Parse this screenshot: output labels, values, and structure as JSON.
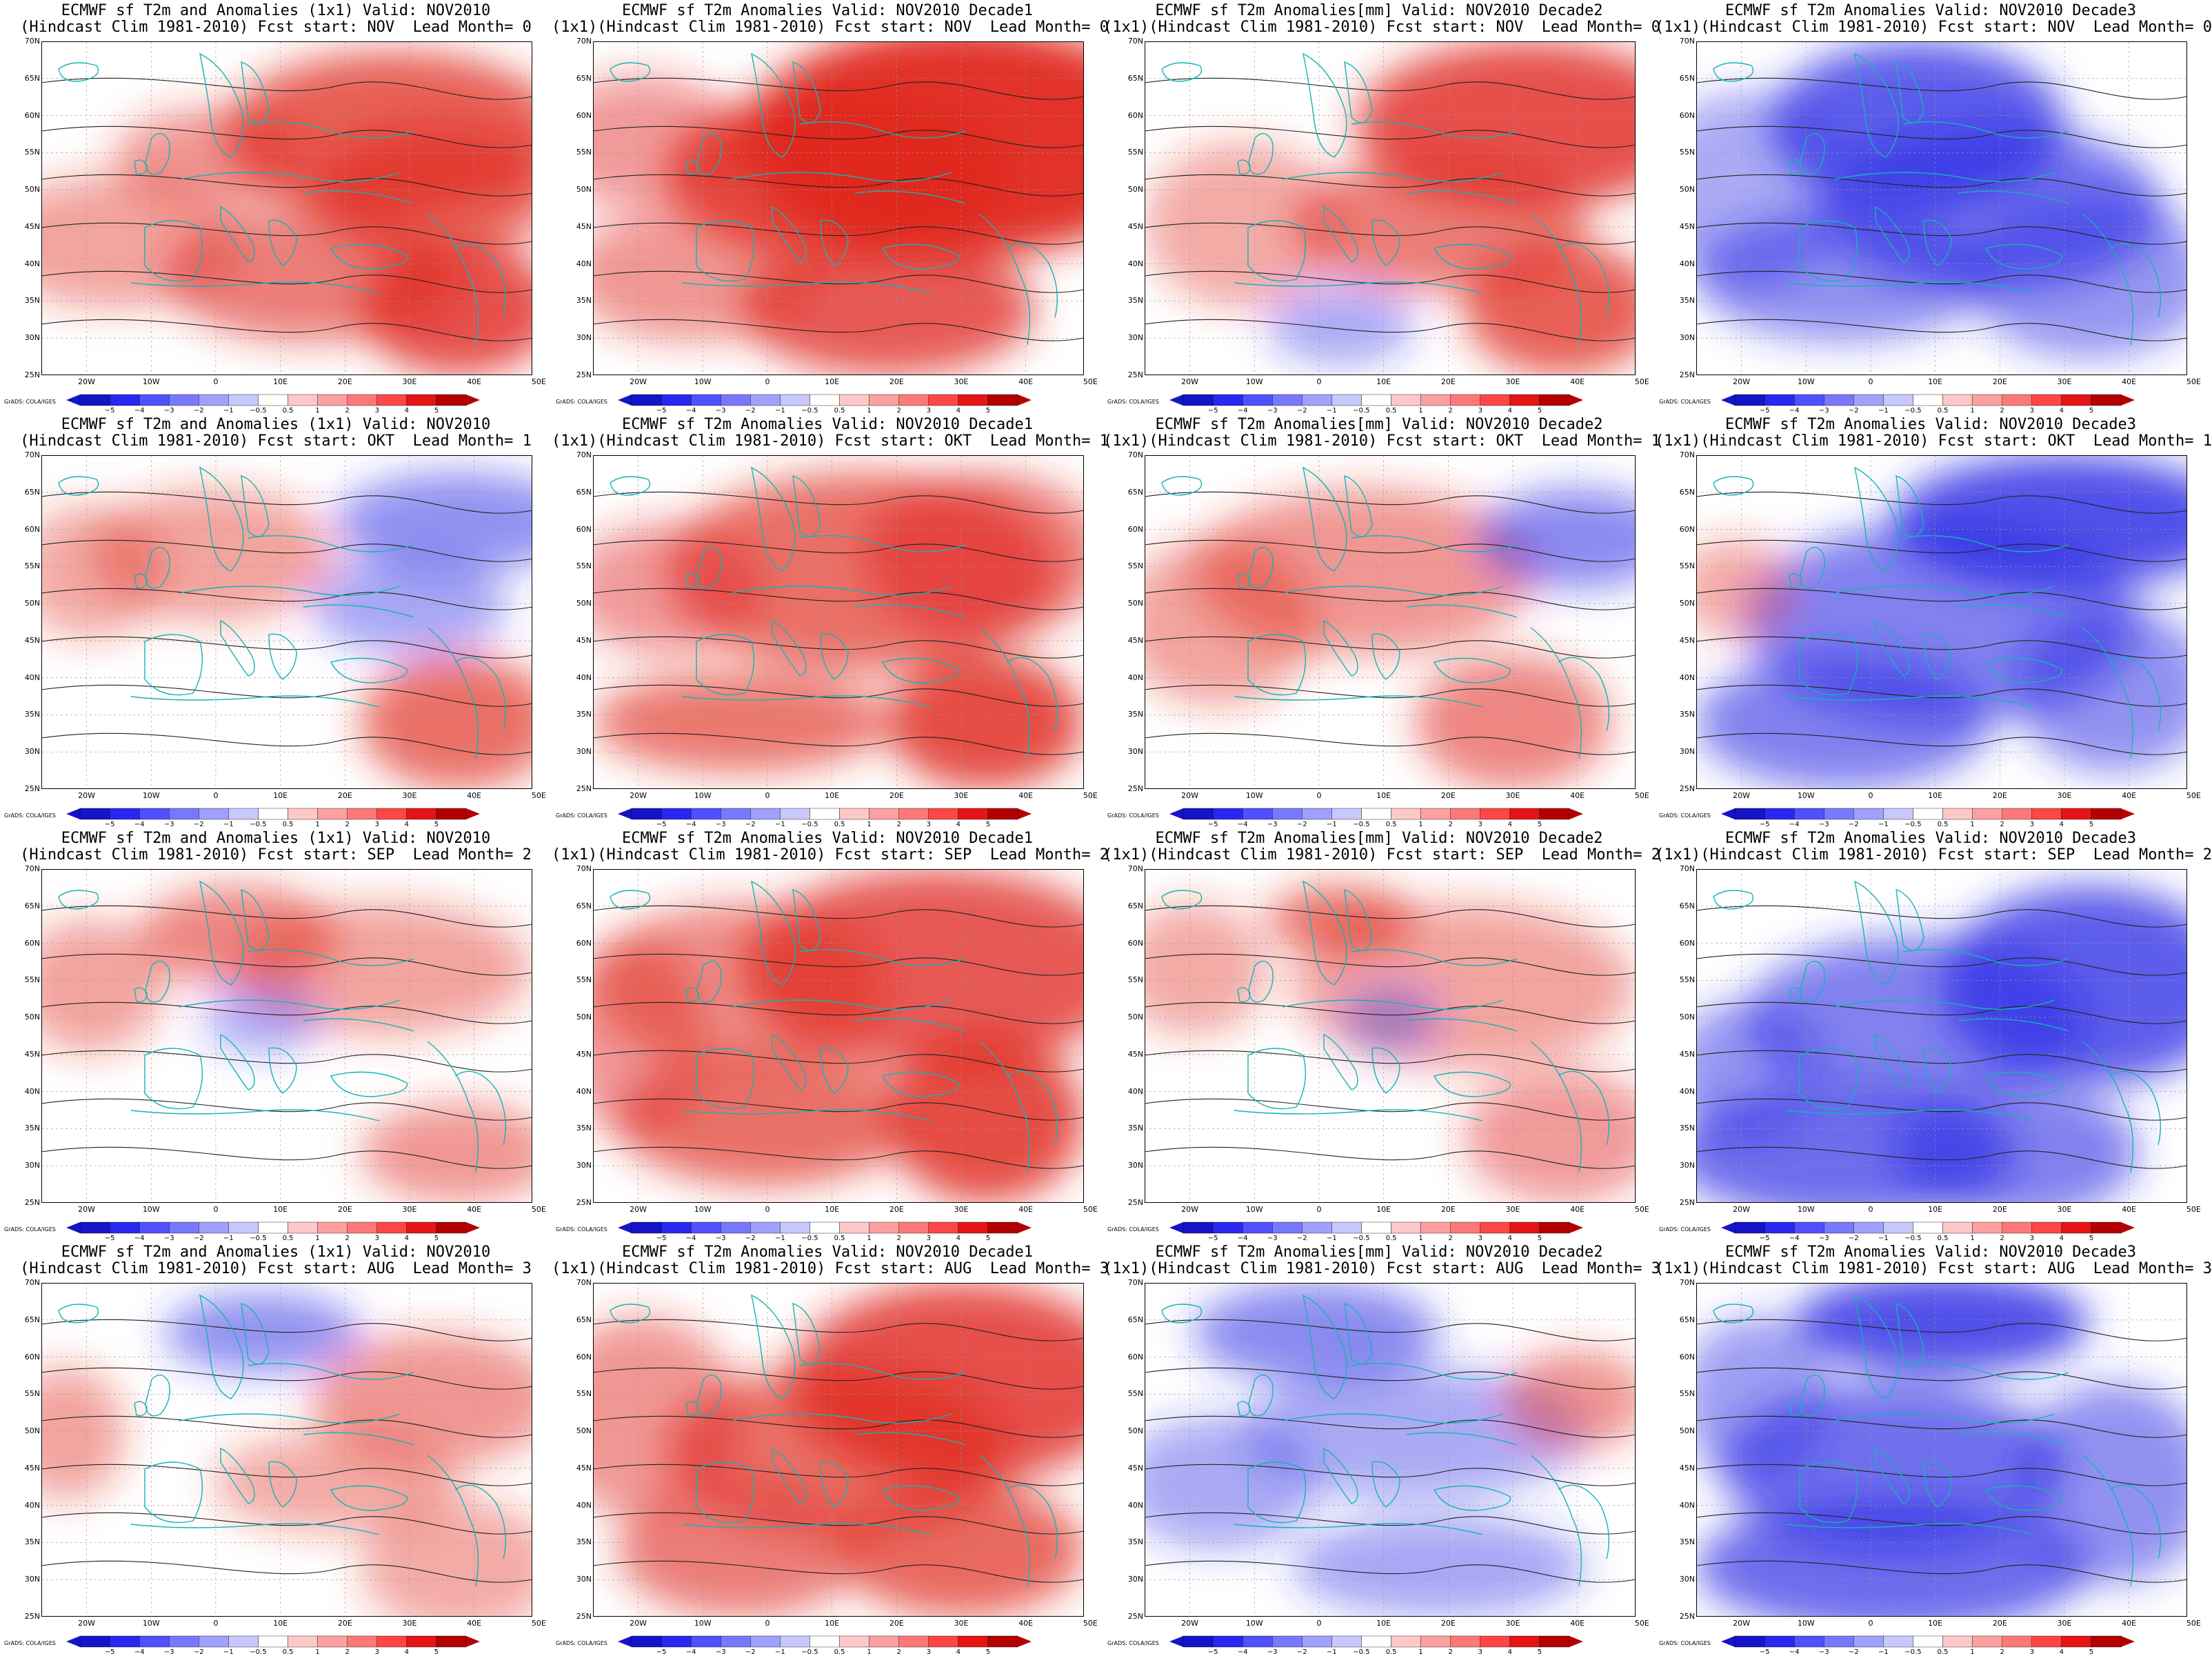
{
  "panels": [
    {
      "title1": "ECMWF sf T2m and Anomalies (1x1) Valid: NOV2010",
      "title2": "(Hindcast Clim 1981-2010) Fcst start: NOV  Lead Month= 0",
      "tone": "warm",
      "blobs": [
        [
          0.72,
          0.28,
          0.35,
          0.25,
          0.7
        ],
        [
          0.8,
          0.45,
          0.25,
          0.2,
          0.6
        ],
        [
          0.55,
          0.7,
          0.3,
          0.2,
          0.5
        ],
        [
          0.85,
          0.8,
          0.2,
          0.2,
          0.8
        ],
        [
          0.15,
          0.6,
          0.25,
          0.2,
          0.25
        ],
        [
          0.35,
          0.35,
          0.2,
          0.15,
          0.35
        ]
      ]
    },
    {
      "title1": "ECMWF sf T2m Anomalies Valid: NOV2010 Decade1",
      "title2": "(1x1)(Hindcast Clim 1981-2010) Fcst start: NOV  Lead Month= 0",
      "tone": "warm",
      "blobs": [
        [
          0.75,
          0.3,
          0.45,
          0.35,
          1.0
        ],
        [
          0.5,
          0.4,
          0.35,
          0.25,
          0.85
        ],
        [
          0.6,
          0.8,
          0.3,
          0.2,
          0.75
        ],
        [
          0.2,
          0.7,
          0.25,
          0.2,
          0.35
        ],
        [
          0.1,
          0.3,
          0.2,
          0.2,
          0.3
        ]
      ]
    },
    {
      "title1": "ECMWF sf T2m Anomalies[mm] Valid: NOV2010 Decade2",
      "title2": "(1x1)(Hindcast Clim 1981-2010) Fcst start: NOV  Lead Month= 0",
      "tone": "warm",
      "blobs": [
        [
          0.78,
          0.25,
          0.35,
          0.25,
          0.8
        ],
        [
          0.6,
          0.55,
          0.3,
          0.2,
          0.5
        ],
        [
          0.85,
          0.8,
          0.2,
          0.2,
          0.7
        ],
        [
          0.2,
          0.55,
          0.2,
          0.25,
          0.2
        ],
        [
          0.4,
          0.85,
          0.15,
          0.12,
          -0.2
        ]
      ]
    },
    {
      "title1": "ECMWF sf T2m Anomalies Valid: NOV2010 Decade3",
      "title2": "(1x1)(Hindcast Clim 1981-2010) Fcst start: NOV  Lead Month= 0",
      "tone": "cold",
      "blobs": [
        [
          0.45,
          0.25,
          0.3,
          0.25,
          -0.75
        ],
        [
          0.6,
          0.5,
          0.35,
          0.25,
          -0.55
        ],
        [
          0.3,
          0.7,
          0.3,
          0.2,
          -0.4
        ],
        [
          0.8,
          0.7,
          0.25,
          0.25,
          -0.35
        ],
        [
          0.1,
          0.45,
          0.2,
          0.3,
          -0.2
        ]
      ]
    },
    {
      "title1": "ECMWF sf T2m and Anomalies (1x1) Valid: NOV2010",
      "title2": "(Hindcast Clim 1981-2010) Fcst start: OKT  Lead Month= 1",
      "tone": "mixed",
      "blobs": [
        [
          0.85,
          0.2,
          0.25,
          0.15,
          -0.4
        ],
        [
          0.35,
          0.3,
          0.25,
          0.2,
          0.25
        ],
        [
          0.75,
          0.45,
          0.2,
          0.15,
          -0.25
        ],
        [
          0.85,
          0.8,
          0.2,
          0.2,
          0.6
        ],
        [
          0.1,
          0.35,
          0.15,
          0.2,
          0.2
        ]
      ]
    },
    {
      "title1": "ECMWF sf T2m Anomalies Valid: NOV2010 Decade1",
      "title2": "(1x1)(Hindcast Clim 1981-2010) Fcst start: OKT  Lead Month= 1",
      "tone": "warm",
      "blobs": [
        [
          0.55,
          0.35,
          0.4,
          0.3,
          0.6
        ],
        [
          0.8,
          0.8,
          0.2,
          0.2,
          0.85
        ],
        [
          0.3,
          0.8,
          0.3,
          0.15,
          0.55
        ],
        [
          0.8,
          0.3,
          0.25,
          0.25,
          0.45
        ],
        [
          0.15,
          0.4,
          0.2,
          0.2,
          0.3
        ]
      ]
    },
    {
      "title1": "ECMWF sf T2m Anomalies[mm] Valid: NOV2010 Decade2",
      "title2": "(1x1)(Hindcast Clim 1981-2010) Fcst start: OKT  Lead Month= 1",
      "tone": "mixed",
      "blobs": [
        [
          0.45,
          0.35,
          0.35,
          0.25,
          0.35
        ],
        [
          0.88,
          0.25,
          0.2,
          0.15,
          -0.45
        ],
        [
          0.75,
          0.8,
          0.2,
          0.2,
          0.45
        ],
        [
          0.15,
          0.5,
          0.2,
          0.25,
          0.25
        ]
      ]
    },
    {
      "title1": "ECMWF sf T2m Anomalies Valid: NOV2010 Decade3",
      "title2": "(1x1)(Hindcast Clim 1981-2010) Fcst start: OKT  Lead Month= 1",
      "tone": "cold",
      "blobs": [
        [
          0.75,
          0.2,
          0.35,
          0.2,
          -0.85
        ],
        [
          0.5,
          0.5,
          0.4,
          0.3,
          -0.5
        ],
        [
          0.3,
          0.8,
          0.3,
          0.2,
          -0.5
        ],
        [
          0.85,
          0.7,
          0.2,
          0.25,
          -0.4
        ],
        [
          0.08,
          0.4,
          0.12,
          0.15,
          0.2
        ]
      ]
    },
    {
      "title1": "ECMWF sf T2m and Anomalies (1x1) Valid: NOV2010",
      "title2": "(Hindcast Clim 1981-2010) Fcst start: SEP  Lead Month= 2",
      "tone": "mixed",
      "blobs": [
        [
          0.4,
          0.2,
          0.2,
          0.15,
          0.45
        ],
        [
          0.7,
          0.3,
          0.3,
          0.2,
          0.25
        ],
        [
          0.85,
          0.85,
          0.2,
          0.15,
          0.35
        ],
        [
          0.45,
          0.45,
          0.12,
          0.1,
          -0.2
        ],
        [
          0.1,
          0.35,
          0.15,
          0.2,
          0.25
        ]
      ]
    },
    {
      "title1": "ECMWF sf T2m Anomalies Valid: NOV2010 Decade1",
      "title2": "(1x1)(Hindcast Clim 1981-2010) Fcst start: SEP  Lead Month= 2",
      "tone": "warm",
      "blobs": [
        [
          0.7,
          0.3,
          0.4,
          0.3,
          0.75
        ],
        [
          0.8,
          0.75,
          0.2,
          0.25,
          0.85
        ],
        [
          0.35,
          0.75,
          0.3,
          0.2,
          0.6
        ],
        [
          0.3,
          0.35,
          0.3,
          0.25,
          0.4
        ],
        [
          0.08,
          0.5,
          0.15,
          0.3,
          0.3
        ]
      ]
    },
    {
      "title1": "ECMWF sf T2m Anomalies[mm] Valid: NOV2010 Decade2",
      "title2": "(1x1)(Hindcast Clim 1981-2010) Fcst start: SEP  Lead Month= 2",
      "tone": "mixed",
      "blobs": [
        [
          0.4,
          0.15,
          0.15,
          0.1,
          0.6
        ],
        [
          0.65,
          0.35,
          0.35,
          0.25,
          0.25
        ],
        [
          0.5,
          0.45,
          0.1,
          0.1,
          -0.2
        ],
        [
          0.85,
          0.8,
          0.2,
          0.2,
          0.3
        ],
        [
          0.1,
          0.3,
          0.15,
          0.2,
          0.2
        ]
      ]
    },
    {
      "title1": "ECMWF sf T2m Anomalies Valid: NOV2010 Decade3",
      "title2": "(1x1)(Hindcast Clim 1981-2010) Fcst start: SEP  Lead Month= 2",
      "tone": "cold",
      "blobs": [
        [
          0.8,
          0.35,
          0.3,
          0.3,
          -0.75
        ],
        [
          0.45,
          0.45,
          0.35,
          0.25,
          -0.5
        ],
        [
          0.3,
          0.85,
          0.35,
          0.2,
          -0.65
        ],
        [
          0.65,
          0.85,
          0.25,
          0.2,
          -0.5
        ],
        [
          0.1,
          0.6,
          0.15,
          0.2,
          -0.35
        ]
      ]
    },
    {
      "title1": "ECMWF sf T2m and Anomalies (1x1) Valid: NOV2010",
      "title2": "(Hindcast Clim 1981-2010) Fcst start: AUG  Lead Month= 3",
      "tone": "mixed",
      "blobs": [
        [
          0.45,
          0.15,
          0.2,
          0.12,
          -0.4
        ],
        [
          0.8,
          0.35,
          0.25,
          0.2,
          0.35
        ],
        [
          0.6,
          0.6,
          0.25,
          0.15,
          0.2
        ],
        [
          0.05,
          0.45,
          0.12,
          0.2,
          0.25
        ],
        [
          0.85,
          0.85,
          0.2,
          0.2,
          0.2
        ]
      ]
    },
    {
      "title1": "ECMWF sf T2m Anomalies Valid: NOV2010 Decade1",
      "title2": "(1x1)(Hindcast Clim 1981-2010) Fcst start: AUG  Lead Month= 3",
      "tone": "warm",
      "blobs": [
        [
          0.75,
          0.3,
          0.35,
          0.3,
          0.8
        ],
        [
          0.5,
          0.5,
          0.35,
          0.25,
          0.6
        ],
        [
          0.75,
          0.8,
          0.25,
          0.2,
          0.65
        ],
        [
          0.3,
          0.8,
          0.25,
          0.2,
          0.5
        ],
        [
          0.1,
          0.4,
          0.2,
          0.3,
          0.35
        ]
      ]
    },
    {
      "title1": "ECMWF sf T2m Anomalies[mm] Valid: NOV2010 Decade2",
      "title2": "(1x1)(Hindcast Clim 1981-2010) Fcst start: AUG  Lead Month= 3",
      "tone": "mixed",
      "blobs": [
        [
          0.35,
          0.15,
          0.25,
          0.15,
          -0.45
        ],
        [
          0.55,
          0.45,
          0.35,
          0.2,
          -0.2
        ],
        [
          0.88,
          0.35,
          0.15,
          0.15,
          0.35
        ],
        [
          0.6,
          0.85,
          0.3,
          0.15,
          -0.25
        ],
        [
          0.15,
          0.6,
          0.2,
          0.2,
          -0.2
        ]
      ]
    },
    {
      "title1": "ECMWF sf T2m Anomalies Valid: NOV2010 Decade3",
      "title2": "(1x1)(Hindcast Clim 1981-2010) Fcst start: AUG  Lead Month= 3",
      "tone": "cold",
      "blobs": [
        [
          0.5,
          0.12,
          0.3,
          0.15,
          -0.85
        ],
        [
          0.4,
          0.55,
          0.35,
          0.25,
          -0.6
        ],
        [
          0.4,
          0.85,
          0.4,
          0.2,
          -0.65
        ],
        [
          0.85,
          0.6,
          0.2,
          0.3,
          -0.4
        ],
        [
          0.12,
          0.35,
          0.15,
          0.25,
          -0.3
        ]
      ]
    }
  ],
  "lat_labels": [
    "70N",
    "65N",
    "60N",
    "55N",
    "50N",
    "45N",
    "40N",
    "35N",
    "30N",
    "25N"
  ],
  "lon_labels": [
    "20W",
    "10W",
    "0",
    "10E",
    "20E",
    "30E",
    "40E",
    "50E"
  ],
  "colorbar": {
    "labels": [
      "−5",
      "−4",
      "−3",
      "−2",
      "−1",
      "−0.5",
      "0.5",
      "1",
      "2",
      "3",
      "4",
      "5"
    ],
    "colors": [
      "#1414c8",
      "#2828f0",
      "#5050ff",
      "#7878ff",
      "#a0a0ff",
      "#c8c8ff",
      "#ffffff",
      "#ffc8c8",
      "#ffa0a0",
      "#ff7878",
      "#ff4646",
      "#e61414",
      "#b40000"
    ]
  },
  "credit": "GrADS: COLA/IGES",
  "colors": {
    "warm": "#e0281e",
    "cold": "#2d2de6",
    "coast": "#14b4b4",
    "contour": "#222222"
  }
}
